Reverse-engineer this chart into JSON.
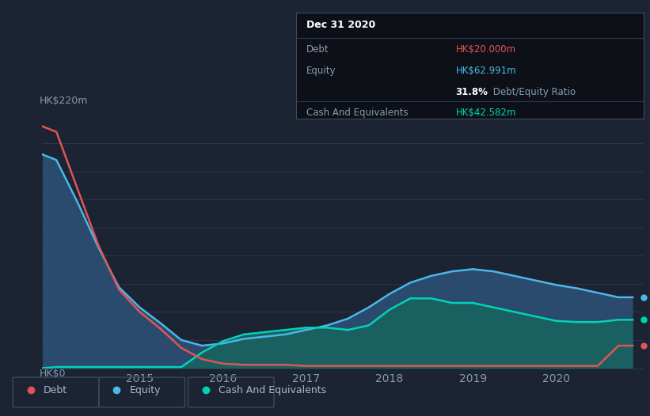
{
  "background_color": "#1c2333",
  "tooltip_bg": "#0d1117",
  "title": "Dec 31 2020",
  "debt_label": "Debt",
  "equity_label": "Equity",
  "cash_label": "Cash And Equivalents",
  "debt_value": "HK$20.000m",
  "equity_value": "HK$62.991m",
  "ratio_bold": "31.8%",
  "ratio_rest": " Debt/Equity Ratio",
  "cash_value": "HK$42.582m",
  "debt_color": "#e05555",
  "equity_color": "#4ab8e8",
  "cash_color": "#00d4b4",
  "equity_fill": "#2a4a6e",
  "cash_fill": "#1a6060",
  "y_label_top": "HK$220m",
  "y_label_bottom": "HK$0",
  "ylim": [
    0,
    220
  ],
  "years": [
    2013.83,
    2014.0,
    2014.25,
    2014.5,
    2014.75,
    2015.0,
    2015.25,
    2015.5,
    2015.75,
    2016.0,
    2016.25,
    2016.5,
    2016.75,
    2017.0,
    2017.25,
    2017.5,
    2017.75,
    2018.0,
    2018.25,
    2018.5,
    2018.75,
    2019.0,
    2019.25,
    2019.5,
    2019.75,
    2020.0,
    2020.25,
    2020.5,
    2020.75,
    2020.92
  ],
  "debt": [
    215,
    210,
    160,
    110,
    70,
    50,
    35,
    18,
    8,
    4,
    3,
    3,
    3,
    2,
    2,
    2,
    2,
    2,
    2,
    2,
    2,
    2,
    2,
    2,
    2,
    2,
    2,
    2,
    20,
    20
  ],
  "equity": [
    190,
    185,
    148,
    108,
    72,
    54,
    40,
    25,
    20,
    22,
    26,
    28,
    30,
    34,
    38,
    44,
    54,
    66,
    76,
    82,
    86,
    88,
    86,
    82,
    78,
    74,
    71,
    67,
    63,
    63
  ],
  "cash": [
    0,
    1,
    1,
    1,
    1,
    1,
    1,
    1,
    14,
    24,
    30,
    32,
    34,
    36,
    36,
    34,
    38,
    52,
    62,
    62,
    58,
    58,
    54,
    50,
    46,
    42,
    41,
    41,
    43,
    43
  ],
  "xticks": [
    2015,
    2016,
    2017,
    2018,
    2019,
    2020
  ],
  "xlim": [
    2013.83,
    2021.05
  ],
  "grid_color": "#2a3550",
  "spine_color": "#2a3550",
  "tick_color": "#8899aa",
  "separator_color": "#2a3550"
}
